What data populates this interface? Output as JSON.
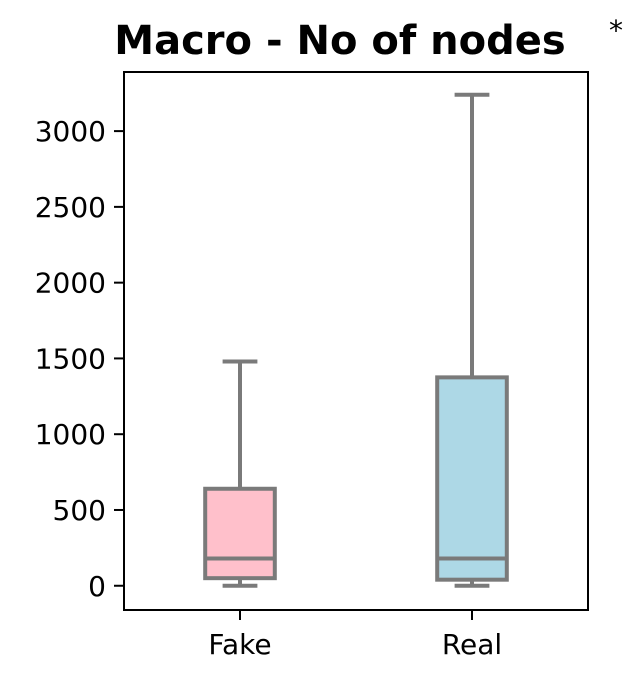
{
  "chart_data": {
    "type": "box",
    "title": "Macro - No of nodes",
    "significance_marker": "*",
    "categories": [
      "Fake",
      "Real"
    ],
    "boxes": [
      {
        "category": "Fake",
        "whisker_low": 0,
        "q1": 50,
        "median": 180,
        "q3": 640,
        "whisker_high": 1480,
        "color": "#ffc0cb"
      },
      {
        "category": "Real",
        "whisker_low": 0,
        "q1": 40,
        "median": 180,
        "q3": 1375,
        "whisker_high": 3240,
        "color": "#add8e6"
      }
    ],
    "yticks": [
      0,
      500,
      1000,
      1500,
      2000,
      2500,
      3000
    ],
    "ylim": [
      -160,
      3390
    ],
    "xlabel": "",
    "ylabel": "",
    "grid": false,
    "edge_color": "#7a7a7a"
  }
}
